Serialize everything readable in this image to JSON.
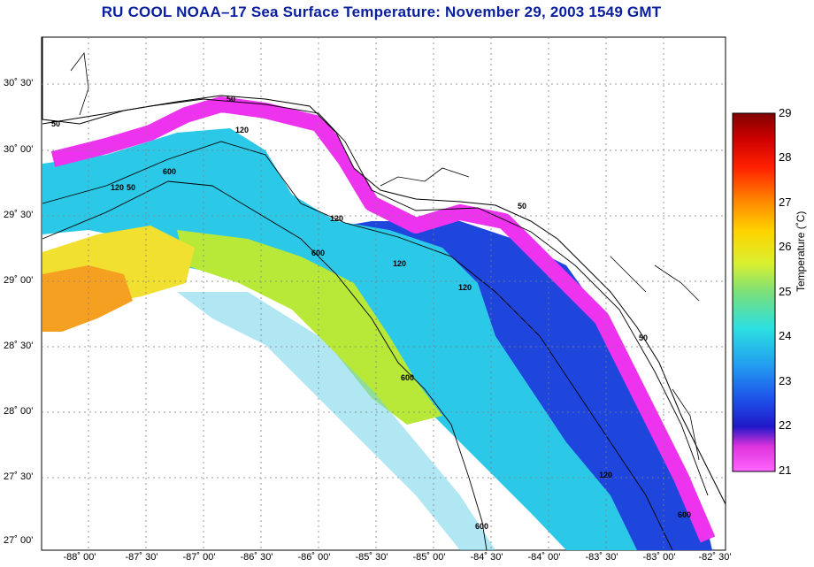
{
  "title": "RU COOL  NOAA–17  Sea Surface Temperature:  November 29, 2003 1549 GMT",
  "colorbar": {
    "label": "Temperature (˚C)",
    "min": 21,
    "max": 29,
    "ticks": [
      "29",
      "28",
      "27",
      "26",
      "25",
      "24",
      "23",
      "22",
      "21"
    ]
  },
  "lat_labels": [
    "30˚ 30'",
    "30˚ 00'",
    "29˚ 30'",
    "29˚ 00'",
    "28˚ 30'",
    "28˚ 00'",
    "27˚ 30'",
    "27˚ 00'"
  ],
  "lon_labels": [
    "-88˚ 00'",
    "-87˚ 30'",
    "-87˚ 00'",
    "-86˚ 30'",
    "-86˚ 00'",
    "-85˚ 30'",
    "-85˚ 00'",
    "-84˚ 30'",
    "-84˚ 00'",
    "-83˚ 30'",
    "-83˚ 00'",
    "-82˚ 30'"
  ],
  "isobath_labels": [
    "50",
    "120",
    "600",
    "120",
    "50",
    "50",
    "120",
    "600",
    "120",
    "600",
    "50",
    "600",
    "120",
    "120",
    "50",
    "600"
  ],
  "colors": {
    "title": "#0a1f9e",
    "warm": "#f5a020",
    "magenta": "#ee33ee",
    "blue": "#1e3cdc",
    "cyan": "#28c8e6",
    "green": "#b4e63c"
  }
}
